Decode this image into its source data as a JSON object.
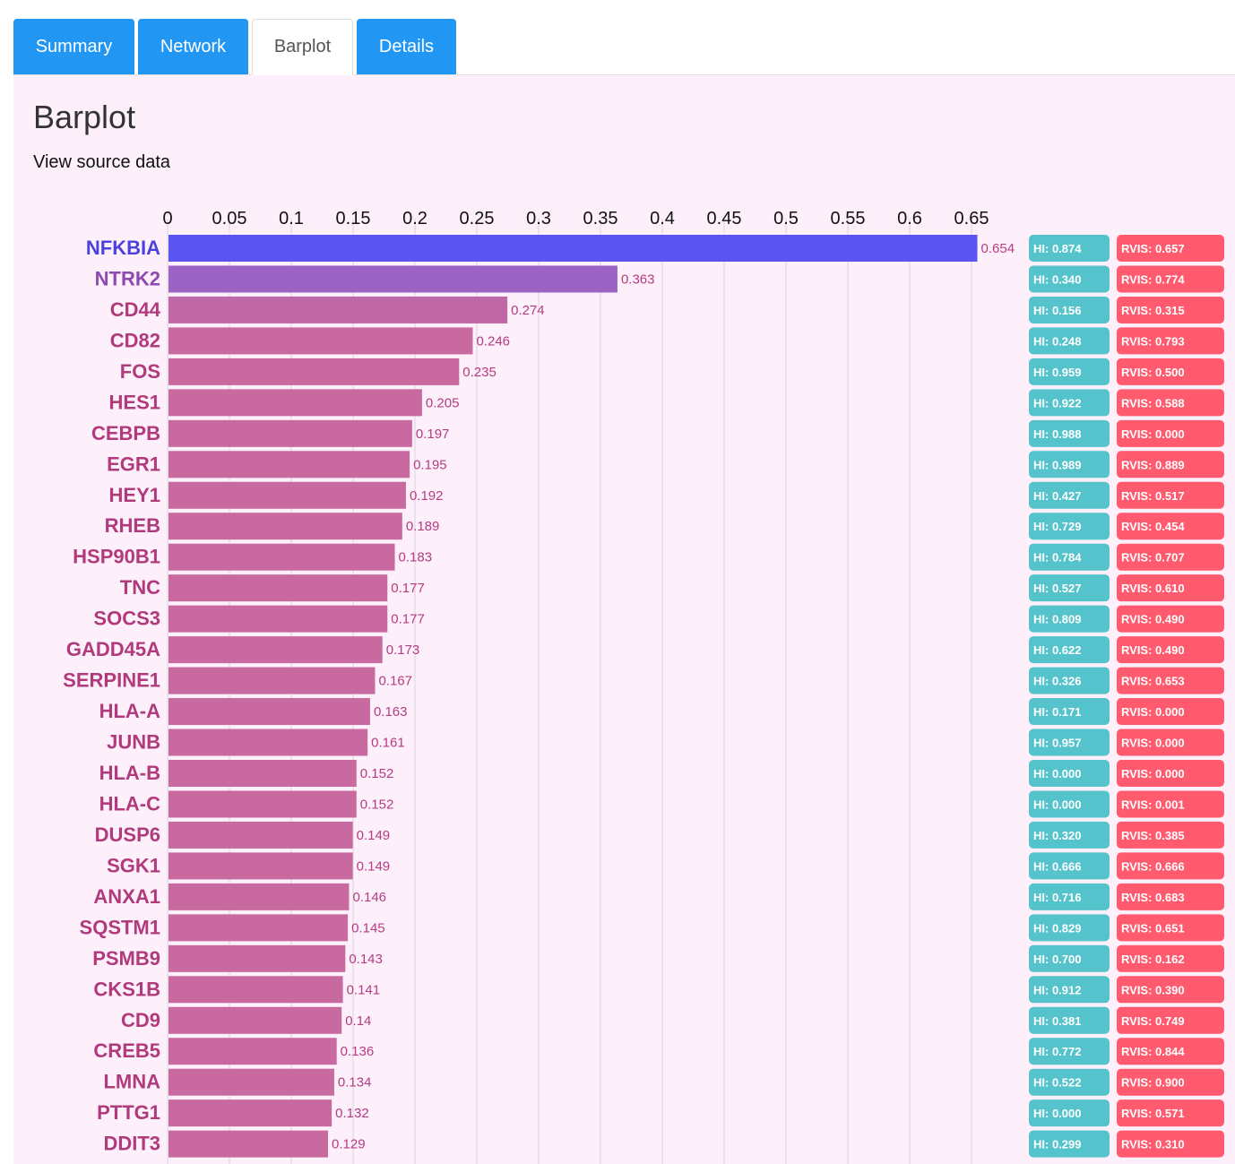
{
  "tabs": [
    {
      "label": "Summary",
      "active": false
    },
    {
      "label": "Network",
      "active": false
    },
    {
      "label": "Barplot",
      "active": true
    },
    {
      "label": "Details",
      "active": false
    }
  ],
  "page": {
    "title": "Barplot",
    "source_link": "View source data"
  },
  "colors": {
    "tab_blue": "#2196f3",
    "panel_bg": "#fdf0fb",
    "bar_top": "#5a55f0",
    "bar_second": "#9a63c4",
    "bar_rest": "#c8699f",
    "hi_badge": "#55c3cc",
    "rvis_badge": "#ff5a6e"
  },
  "chart_data": {
    "type": "bar",
    "orientation": "horizontal",
    "xlim": [
      0,
      0.65
    ],
    "x_ticks": [
      "0",
      "0.05",
      "0.1",
      "0.15",
      "0.2",
      "0.25",
      "0.3",
      "0.35",
      "0.4",
      "0.45",
      "0.5",
      "0.55",
      "0.6",
      "0.65"
    ],
    "grid": true,
    "categories": [
      "NFKBIA",
      "NTRK2",
      "CD44",
      "CD82",
      "FOS",
      "HES1",
      "CEBPB",
      "EGR1",
      "HEY1",
      "RHEB",
      "HSP90B1",
      "TNC",
      "SOCS3",
      "GADD45A",
      "SERPINE1",
      "HLA-A",
      "JUNB",
      "HLA-B",
      "HLA-C",
      "DUSP6",
      "SGK1",
      "ANXA1",
      "SQSTM1",
      "PSMB9",
      "CKS1B",
      "CD9",
      "CREB5",
      "LMNA",
      "PTTG1",
      "DDIT3"
    ],
    "values": [
      0.654,
      0.363,
      0.274,
      0.246,
      0.235,
      0.205,
      0.197,
      0.195,
      0.192,
      0.189,
      0.183,
      0.177,
      0.177,
      0.173,
      0.167,
      0.163,
      0.161,
      0.152,
      0.152,
      0.149,
      0.149,
      0.146,
      0.145,
      0.143,
      0.141,
      0.14,
      0.136,
      0.134,
      0.132,
      0.129
    ],
    "value_labels": [
      "0.654",
      "0.363",
      "0.274",
      "0.246",
      "0.235",
      "0.205",
      "0.197",
      "0.195",
      "0.192",
      "0.189",
      "0.183",
      "0.177",
      "0.177",
      "0.173",
      "0.167",
      "0.163",
      "0.161",
      "0.152",
      "0.152",
      "0.149",
      "0.149",
      "0.146",
      "0.145",
      "0.143",
      "0.141",
      "0.14",
      "0.136",
      "0.134",
      "0.132",
      "0.129"
    ],
    "hi_badges": [
      "HI: 0.874",
      "HI: 0.340",
      "HI: 0.156",
      "HI: 0.248",
      "HI: 0.959",
      "HI: 0.922",
      "HI: 0.988",
      "HI: 0.989",
      "HI: 0.427",
      "HI: 0.729",
      "HI: 0.784",
      "HI: 0.527",
      "HI: 0.809",
      "HI: 0.622",
      "HI: 0.326",
      "HI: 0.171",
      "HI: 0.957",
      "HI: 0.000",
      "HI: 0.000",
      "HI: 0.320",
      "HI: 0.666",
      "HI: 0.716",
      "HI: 0.829",
      "HI: 0.700",
      "HI: 0.912",
      "HI: 0.381",
      "HI: 0.772",
      "HI: 0.522",
      "HI: 0.000",
      "HI: 0.299"
    ],
    "rvis_badges": [
      "RVIS: 0.657",
      "RVIS: 0.774",
      "RVIS: 0.315",
      "RVIS: 0.793",
      "RVIS: 0.500",
      "RVIS: 0.588",
      "RVIS: 0.000",
      "RVIS: 0.889",
      "RVIS: 0.517",
      "RVIS: 0.454",
      "RVIS: 0.707",
      "RVIS: 0.610",
      "RVIS: 0.490",
      "RVIS: 0.490",
      "RVIS: 0.653",
      "RVIS: 0.000",
      "RVIS: 0.000",
      "RVIS: 0.000",
      "RVIS: 0.001",
      "RVIS: 0.385",
      "RVIS: 0.666",
      "RVIS: 0.683",
      "RVIS: 0.651",
      "RVIS: 0.162",
      "RVIS: 0.390",
      "RVIS: 0.749",
      "RVIS: 0.844",
      "RVIS: 0.900",
      "RVIS: 0.571",
      "RVIS: 0.310"
    ]
  }
}
